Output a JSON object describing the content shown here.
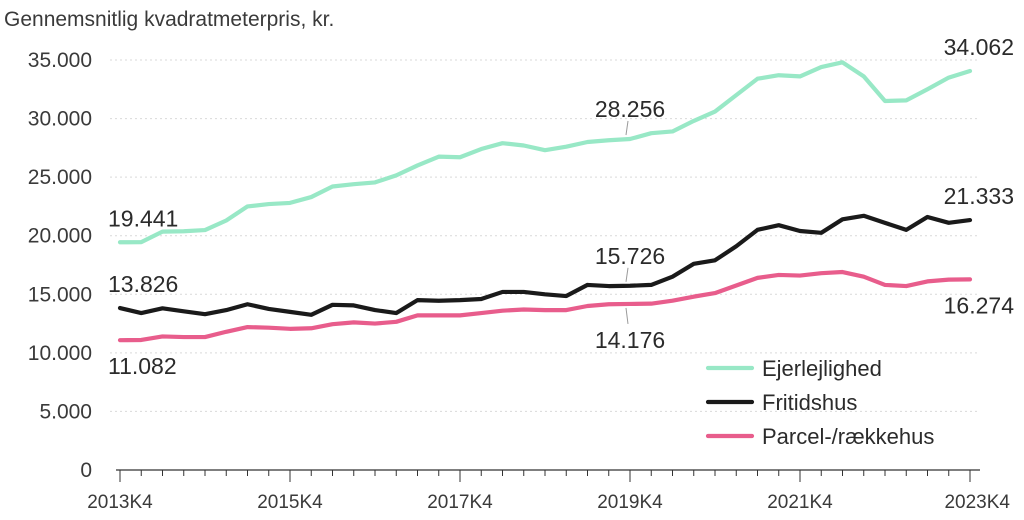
{
  "chart_data": {
    "type": "line",
    "ylabel": "Gennemsnitlig kvadratmeterpris, kr.",
    "ylim": [
      0,
      35000
    ],
    "yticks": [
      0,
      5000,
      10000,
      15000,
      20000,
      25000,
      30000,
      35000
    ],
    "ytick_labels": [
      "0",
      "5.000",
      "10.000",
      "15.000",
      "20.000",
      "25.000",
      "30.000",
      "35.000"
    ],
    "xtick_labels": [
      "2013K4",
      "2015K4",
      "2017K4",
      "2019K4",
      "2021K4",
      "2023K4"
    ],
    "xtick_label_quarters": [
      0,
      8,
      16,
      24,
      32,
      40
    ],
    "n_quarters": 41,
    "grid": "horizontal",
    "legend_position": "bottom-right",
    "series": [
      {
        "name": "Ejerlejlighed",
        "color": "#98e8c6",
        "values": [
          19441,
          19450,
          20350,
          20380,
          20480,
          21300,
          22500,
          22700,
          22800,
          23300,
          24200,
          24400,
          24550,
          25150,
          26000,
          26750,
          26700,
          27400,
          27900,
          27700,
          27300,
          27600,
          28000,
          28150,
          28256,
          28750,
          28900,
          29800,
          30600,
          32000,
          33400,
          33700,
          33600,
          34400,
          34800,
          33600,
          31500,
          31550,
          32500,
          33500,
          34062
        ]
      },
      {
        "name": "Fritidshus",
        "color": "#1a1a1a",
        "values": [
          13826,
          13400,
          13800,
          13550,
          13300,
          13650,
          14150,
          13750,
          13500,
          13250,
          14100,
          14050,
          13650,
          13400,
          14500,
          14450,
          14500,
          14600,
          15200,
          15200,
          15000,
          14850,
          15800,
          15700,
          15726,
          15800,
          16500,
          17600,
          17900,
          19100,
          20500,
          20900,
          20400,
          20250,
          21400,
          21700,
          21100,
          20500,
          21600,
          21100,
          21333
        ]
      },
      {
        "name": "Parcel-/rækkehus",
        "color": "#e85d8c",
        "values": [
          11082,
          11100,
          11400,
          11350,
          11350,
          11800,
          12200,
          12150,
          12050,
          12100,
          12450,
          12600,
          12500,
          12650,
          13200,
          13200,
          13200,
          13400,
          13600,
          13700,
          13650,
          13650,
          14000,
          14150,
          14176,
          14200,
          14450,
          14800,
          15100,
          15750,
          16400,
          16650,
          16600,
          16800,
          16900,
          16500,
          15800,
          15700,
          16100,
          16250,
          16274
        ]
      }
    ],
    "annotations": [
      {
        "text": "19.441",
        "series": 0,
        "index": 0,
        "pos": "above"
      },
      {
        "text": "28.256",
        "series": 0,
        "index": 24,
        "pos": "above-leader"
      },
      {
        "text": "34.062",
        "series": 0,
        "index": 40,
        "pos": "above"
      },
      {
        "text": "13.826",
        "series": 1,
        "index": 0,
        "pos": "above"
      },
      {
        "text": "15.726",
        "series": 1,
        "index": 24,
        "pos": "above-leader"
      },
      {
        "text": "21.333",
        "series": 1,
        "index": 40,
        "pos": "above"
      },
      {
        "text": "11.082",
        "series": 2,
        "index": 0,
        "pos": "below"
      },
      {
        "text": "14.176",
        "series": 2,
        "index": 24,
        "pos": "below-leader"
      },
      {
        "text": "16.274",
        "series": 2,
        "index": 40,
        "pos": "below"
      }
    ]
  }
}
